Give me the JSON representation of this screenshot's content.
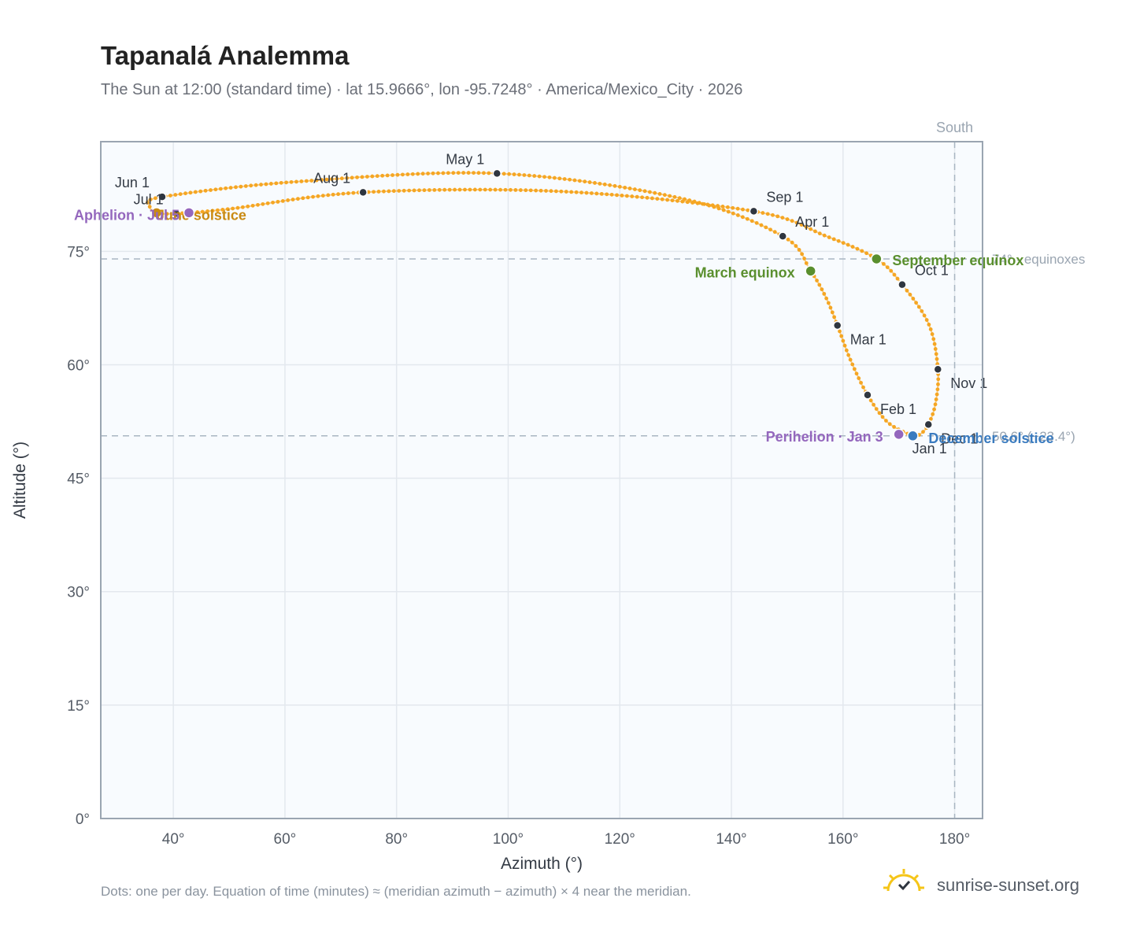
{
  "header": {
    "title": "Tapanalá Analemma",
    "subtitle": "The Sun at 12:00 (standard time) · lat 15.9666°, lon -95.7248° · America/Mexico_City · 2026"
  },
  "footer": {
    "note": "Dots: one per day. Equation of time (minutes) ≈ (meridian azimuth − azimuth) × 4 near the meridian.",
    "brand": "sunrise-sunset.org"
  },
  "colors": {
    "curve": "#f5a623",
    "month_marker": "#2f3640",
    "equinox": "#5a8f2e",
    "june_solstice": "#c98a12",
    "december_solstice": "#3a7bbf",
    "apsis": "#9467bd",
    "grid": "#e3e8ee",
    "plot_bg": "#f8fbfe",
    "frame": "#9aa5b1"
  },
  "chart_data": {
    "type": "scatter",
    "xlabel": "Azimuth (°)",
    "ylabel": "Altitude (°)",
    "xlim": [
      27,
      185
    ],
    "ylim": [
      0,
      89.5
    ],
    "x_ticks": [
      40,
      60,
      80,
      100,
      120,
      140,
      160,
      180
    ],
    "x_tick_labels": [
      "40°",
      "60°",
      "80°",
      "100°",
      "120°",
      "140°",
      "160°",
      "180°"
    ],
    "y_ticks": [
      0,
      15,
      30,
      45,
      60,
      75
    ],
    "y_tick_labels": [
      "0°",
      "15°",
      "30°",
      "45°",
      "60°",
      "75°"
    ],
    "grid": true,
    "vertical_reference": {
      "x": 180,
      "label": "South"
    },
    "horizontal_references": [
      {
        "y": 74.0,
        "label": "74° · equinoxes"
      },
      {
        "y": 50.6,
        "label": "50.6° (−23.4°)"
      }
    ],
    "daily_path": {
      "name": "Daily sun position",
      "points": [
        {
          "date": "Jan 1",
          "azimuth": 172.4,
          "altitude": 50.6
        },
        {
          "date": "Jan 15",
          "azimuth": 168.0,
          "altitude": 52.4
        },
        {
          "date": "Feb 1",
          "azimuth": 164.4,
          "altitude": 56.0
        },
        {
          "date": "Feb 15",
          "azimuth": 161.3,
          "altitude": 60.7
        },
        {
          "date": "Mar 1",
          "azimuth": 159.0,
          "altitude": 65.2
        },
        {
          "date": "Mar 10",
          "azimuth": 157.0,
          "altitude": 68.8
        },
        {
          "date": "Mar 20",
          "azimuth": 154.2,
          "altitude": 72.4
        },
        {
          "date": "Apr 1",
          "azimuth": 149.2,
          "altitude": 77.0
        },
        {
          "date": "Apr 15",
          "azimuth": 131.0,
          "altitude": 82.0
        },
        {
          "date": "May 1",
          "azimuth": 98.0,
          "altitude": 85.3
        },
        {
          "date": "May 15",
          "azimuth": 62.0,
          "altitude": 84.2
        },
        {
          "date": "Jun 1",
          "azimuth": 38.0,
          "altitude": 82.2
        },
        {
          "date": "Jun 12",
          "azimuth": 35.8,
          "altitude": 81.0
        },
        {
          "date": "Jun 21",
          "azimuth": 37.0,
          "altitude": 80.1
        },
        {
          "date": "Jul 1",
          "azimuth": 40.5,
          "altitude": 80.0
        },
        {
          "date": "Jul 15",
          "azimuth": 50.0,
          "altitude": 80.6
        },
        {
          "date": "Aug 1",
          "azimuth": 74.0,
          "altitude": 82.8
        },
        {
          "date": "Aug 15",
          "azimuth": 110.0,
          "altitude": 82.9
        },
        {
          "date": "Sep 1",
          "azimuth": 144.0,
          "altitude": 80.3
        },
        {
          "date": "Sep 12",
          "azimuth": 157.0,
          "altitude": 77.0
        },
        {
          "date": "Sep 23",
          "azimuth": 166.0,
          "altitude": 74.0
        },
        {
          "date": "Oct 1",
          "azimuth": 170.6,
          "altitude": 70.6
        },
        {
          "date": "Oct 15",
          "azimuth": 175.4,
          "altitude": 65.3
        },
        {
          "date": "Nov 1",
          "azimuth": 177.0,
          "altitude": 59.4
        },
        {
          "date": "Nov 15",
          "azimuth": 176.6,
          "altitude": 55.0
        },
        {
          "date": "Dec 1",
          "azimuth": 175.3,
          "altitude": 52.1
        },
        {
          "date": "Dec 15",
          "azimuth": 173.8,
          "altitude": 50.8
        },
        {
          "date": "Dec 31",
          "azimuth": 172.5,
          "altitude": 50.6
        }
      ]
    },
    "month_markers": [
      {
        "label": "Jan 1",
        "azimuth": 172.4,
        "altitude": 50.6
      },
      {
        "label": "Feb 1",
        "azimuth": 164.4,
        "altitude": 56.0
      },
      {
        "label": "Mar 1",
        "azimuth": 159.0,
        "altitude": 65.2
      },
      {
        "label": "Apr 1",
        "azimuth": 149.2,
        "altitude": 77.0
      },
      {
        "label": "May 1",
        "azimuth": 98.0,
        "altitude": 85.3
      },
      {
        "label": "Jun 1",
        "azimuth": 38.0,
        "altitude": 82.2
      },
      {
        "label": "Jul 1",
        "azimuth": 40.5,
        "altitude": 80.0
      },
      {
        "label": "Aug 1",
        "azimuth": 74.0,
        "altitude": 82.8
      },
      {
        "label": "Sep 1",
        "azimuth": 144.0,
        "altitude": 80.3
      },
      {
        "label": "Oct 1",
        "azimuth": 170.6,
        "altitude": 70.6
      },
      {
        "label": "Nov 1",
        "azimuth": 177.0,
        "altitude": 59.4
      },
      {
        "label": "Dec 1",
        "azimuth": 175.3,
        "altitude": 52.1
      }
    ],
    "events": [
      {
        "label": "March equinox",
        "azimuth": 154.2,
        "altitude": 72.4,
        "color": "#5a8f2e"
      },
      {
        "label": "September equinox",
        "azimuth": 166.0,
        "altitude": 74.0,
        "color": "#5a8f2e"
      },
      {
        "label": "June solstice",
        "azimuth": 37.0,
        "altitude": 80.1,
        "color": "#c98a12"
      },
      {
        "label": "December solstice",
        "azimuth": 172.5,
        "altitude": 50.6,
        "color": "#3a7bbf"
      },
      {
        "label": "Aphelion · Jul 5",
        "azimuth": 42.8,
        "altitude": 80.1,
        "color": "#9467bd"
      },
      {
        "label": "Perihelion · Jan 3",
        "azimuth": 170.0,
        "altitude": 50.8,
        "color": "#9467bd"
      }
    ]
  }
}
